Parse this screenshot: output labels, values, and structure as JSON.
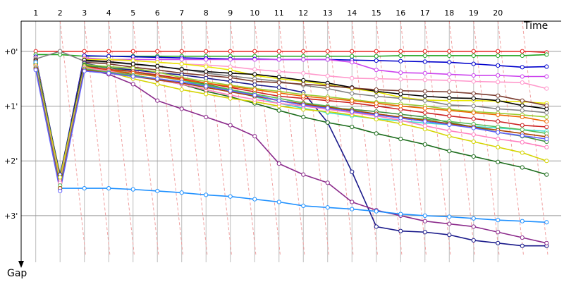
{
  "chart_data": {
    "type": "line",
    "title": "",
    "xlabel": "Time",
    "ylabel": "Gap",
    "x": [
      1,
      2,
      3,
      4,
      5,
      6,
      7,
      8,
      9,
      10,
      11,
      12,
      13,
      14,
      15,
      16,
      17,
      18,
      19,
      20,
      21,
      22
    ],
    "x_tick_labels": [
      "1",
      "2",
      "3",
      "4",
      "5",
      "6",
      "7",
      "8",
      "9",
      "10",
      "11",
      "12",
      "13",
      "14",
      "15",
      "16",
      "17",
      "18",
      "19",
      "20"
    ],
    "y_tick_labels": [
      "+0'",
      "+1'",
      "+2'",
      "+3'"
    ],
    "y_ticks": [
      0,
      1,
      2,
      3
    ],
    "xlim": [
      0.4,
      22.6
    ],
    "ylim": [
      -0.55,
      3.85
    ],
    "y_inverted": true,
    "grid": true,
    "colors": {
      "grid": "#bdbdbd",
      "pit_lines": "#f0a0a0"
    },
    "series": [
      {
        "color": "#e6201c",
        "values": [
          0.0,
          0.0,
          0.0,
          0.0,
          0.0,
          0.0,
          0.0,
          0.0,
          0.0,
          0.0,
          0.0,
          0.0,
          0.0,
          0.0,
          0.0,
          0.0,
          0.0,
          0.0,
          0.0,
          0.0,
          0.0,
          0.02
        ]
      },
      {
        "color": "#1fa31f",
        "values": [
          0.06,
          0.06,
          0.09,
          0.09,
          0.09,
          0.09,
          0.09,
          0.09,
          0.09,
          0.09,
          0.09,
          0.09,
          0.09,
          0.09,
          0.09,
          0.08,
          0.08,
          0.08,
          0.08,
          0.08,
          0.08,
          0.06
        ]
      },
      {
        "color": "#0000cc",
        "values": [
          0.1,
          2.3,
          0.08,
          0.09,
          0.1,
          0.11,
          0.12,
          0.13,
          0.14,
          0.14,
          0.15,
          0.15,
          0.15,
          0.16,
          0.17,
          0.18,
          0.19,
          0.2,
          0.23,
          0.26,
          0.29,
          0.28
        ]
      },
      {
        "color": "#cc44ee",
        "values": [
          0.12,
          2.4,
          0.12,
          0.15,
          0.15,
          0.15,
          0.15,
          0.15,
          0.15,
          0.15,
          0.15,
          0.15,
          0.15,
          0.2,
          0.34,
          0.39,
          0.4,
          0.42,
          0.44,
          0.44,
          0.46,
          0.46
        ]
      },
      {
        "color": "#ff99cc",
        "values": [
          0.12,
          2.35,
          0.14,
          0.16,
          0.17,
          0.2,
          0.23,
          0.25,
          0.28,
          0.33,
          0.37,
          0.4,
          0.45,
          0.49,
          0.5,
          0.51,
          0.52,
          0.53,
          0.55,
          0.56,
          0.57,
          0.68
        ]
      },
      {
        "color": "#e8e800",
        "values": [
          0.14,
          2.3,
          0.15,
          0.15,
          0.17,
          0.2,
          0.23,
          0.28,
          0.34,
          0.44,
          0.5,
          0.55,
          0.61,
          0.68,
          0.74,
          0.84,
          0.89,
          0.9,
          0.9,
          0.91,
          0.92,
          0.95
        ]
      },
      {
        "color": "#808080",
        "values": [
          0.14,
          0.0,
          0.18,
          0.2,
          0.24,
          0.28,
          0.32,
          0.4,
          0.45,
          0.5,
          0.55,
          0.62,
          0.68,
          0.77,
          0.82,
          0.86,
          0.9,
          0.98,
          1.0,
          1.05,
          1.08,
          1.12
        ]
      },
      {
        "color": "#000000",
        "values": [
          0.16,
          2.3,
          0.16,
          0.19,
          0.23,
          0.27,
          0.33,
          0.37,
          0.4,
          0.42,
          0.47,
          0.53,
          0.58,
          0.66,
          0.73,
          0.78,
          0.82,
          0.85,
          0.86,
          0.9,
          0.99,
          1.05
        ]
      },
      {
        "color": "#7a3b2e",
        "values": [
          0.18,
          2.3,
          0.2,
          0.23,
          0.29,
          0.34,
          0.4,
          0.44,
          0.48,
          0.55,
          0.57,
          0.6,
          0.63,
          0.67,
          0.7,
          0.72,
          0.73,
          0.74,
          0.77,
          0.81,
          0.9,
          0.99
        ]
      },
      {
        "color": "#19198a",
        "values": [
          0.2,
          2.25,
          0.22,
          0.3,
          0.34,
          0.39,
          0.43,
          0.49,
          0.55,
          0.61,
          0.66,
          0.75,
          1.3,
          2.2,
          3.2,
          3.28,
          3.3,
          3.35,
          3.45,
          3.5,
          3.55,
          3.55
        ]
      },
      {
        "color": "#9acd32",
        "values": [
          0.2,
          2.3,
          0.24,
          0.28,
          0.31,
          0.38,
          0.48,
          0.55,
          0.62,
          0.68,
          0.73,
          0.79,
          0.83,
          0.88,
          0.93,
          0.96,
          1.0,
          1.06,
          1.1,
          1.13,
          1.16,
          1.2
        ]
      },
      {
        "color": "#40e0d0",
        "values": [
          0.22,
          2.35,
          0.28,
          0.34,
          0.4,
          0.46,
          0.53,
          0.62,
          0.72,
          0.83,
          0.95,
          1.04,
          1.12,
          1.18,
          1.23,
          1.27,
          1.31,
          1.34,
          1.37,
          1.4,
          1.43,
          1.46
        ]
      },
      {
        "color": "#1a6b1a",
        "values": [
          0.22,
          2.3,
          0.25,
          0.35,
          0.43,
          0.52,
          0.6,
          0.73,
          0.83,
          0.95,
          1.08,
          1.2,
          1.3,
          1.38,
          1.5,
          1.6,
          1.7,
          1.82,
          1.92,
          2.02,
          2.12,
          2.25
        ]
      },
      {
        "color": "#3f8f3f",
        "values": [
          0.24,
          2.3,
          0.26,
          0.3,
          0.37,
          0.45,
          0.52,
          0.6,
          0.7,
          0.8,
          0.9,
          0.98,
          1.03,
          1.06,
          1.1,
          1.15,
          1.2,
          1.3,
          1.38,
          1.48,
          1.55,
          1.65
        ]
      },
      {
        "color": "#cc2222",
        "values": [
          0.25,
          2.35,
          0.28,
          0.33,
          0.37,
          0.43,
          0.5,
          0.58,
          0.66,
          0.74,
          0.82,
          0.86,
          0.9,
          0.94,
          1.0,
          1.06,
          1.12,
          1.18,
          1.23,
          1.28,
          1.35,
          1.38
        ]
      },
      {
        "color": "#ee6600",
        "values": [
          0.26,
          2.4,
          0.3,
          0.35,
          0.4,
          0.46,
          0.52,
          0.58,
          0.64,
          0.7,
          0.76,
          0.82,
          0.86,
          0.9,
          0.95,
          1.0,
          1.04,
          1.08,
          1.12,
          1.16,
          1.2,
          1.28
        ]
      },
      {
        "color": "#8b2a8b",
        "values": [
          0.3,
          2.35,
          0.32,
          0.42,
          0.6,
          0.9,
          1.05,
          1.2,
          1.35,
          1.55,
          2.05,
          2.25,
          2.4,
          2.75,
          2.9,
          3.0,
          3.1,
          3.15,
          3.2,
          3.3,
          3.4,
          3.5
        ]
      },
      {
        "color": "#1e90ff",
        "values": [
          0.2,
          2.5,
          2.5,
          2.5,
          2.52,
          2.55,
          2.58,
          2.62,
          2.65,
          2.7,
          2.75,
          2.82,
          2.85,
          2.88,
          2.92,
          2.97,
          3.0,
          3.02,
          3.05,
          3.08,
          3.1,
          3.12
        ]
      },
      {
        "color": "#d4d400",
        "values": [
          0.26,
          2.3,
          0.28,
          0.38,
          0.5,
          0.6,
          0.7,
          0.78,
          0.86,
          0.92,
          1.0,
          1.06,
          1.1,
          1.16,
          1.24,
          1.32,
          1.42,
          1.55,
          1.65,
          1.75,
          1.85,
          2.0
        ]
      },
      {
        "color": "#ff7fbf",
        "values": [
          0.28,
          2.4,
          0.3,
          0.36,
          0.44,
          0.52,
          0.6,
          0.7,
          0.8,
          0.88,
          0.95,
          1.0,
          1.06,
          1.12,
          1.18,
          1.26,
          1.36,
          1.45,
          1.52,
          1.6,
          1.66,
          1.75
        ]
      },
      {
        "color": "#55bb55",
        "values": [
          0.3,
          2.45,
          0.32,
          0.38,
          0.44,
          0.5,
          0.56,
          0.62,
          0.7,
          0.78,
          0.86,
          0.94,
          1.0,
          1.08,
          1.15,
          1.2,
          1.24,
          1.28,
          1.33,
          1.38,
          1.43,
          1.5
        ]
      },
      {
        "color": "#aa4400",
        "values": [
          0.32,
          2.5,
          0.34,
          0.4,
          0.46,
          0.52,
          0.58,
          0.66,
          0.74,
          0.82,
          0.9,
          0.96,
          1.02,
          1.08,
          1.14,
          1.2,
          1.26,
          1.32,
          1.38,
          1.44,
          1.5,
          1.56
        ]
      },
      {
        "color": "#6060ff",
        "values": [
          0.34,
          2.55,
          0.36,
          0.4,
          0.46,
          0.5,
          0.56,
          0.64,
          0.72,
          0.8,
          0.9,
          0.98,
          1.04,
          1.1,
          1.16,
          1.22,
          1.28,
          1.34,
          1.4,
          1.48,
          1.54,
          1.6
        ]
      }
    ]
  }
}
